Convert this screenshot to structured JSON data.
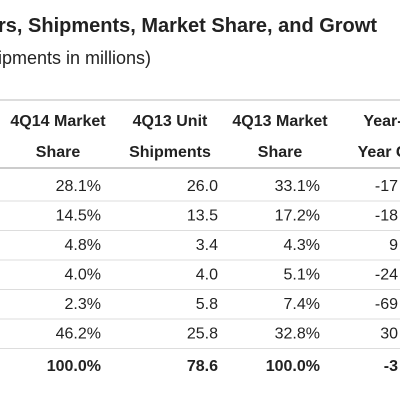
{
  "header": {
    "title": "rs, Shipments, Market Share, and Growt",
    "subtitle": "ipments in millions)"
  },
  "table": {
    "columns": [
      [
        "4Q14 Market",
        "Share"
      ],
      [
        "4Q13 Unit",
        "Shipments"
      ],
      [
        "4Q13 Market",
        "Share"
      ],
      [
        "Year-",
        "Year G"
      ]
    ],
    "rows": [
      [
        "28.1%",
        "26.0",
        "33.1%",
        "-17"
      ],
      [
        "14.5%",
        "13.5",
        "17.2%",
        "-18"
      ],
      [
        "4.8%",
        "3.4",
        "4.3%",
        "9"
      ],
      [
        "4.0%",
        "4.0",
        "5.1%",
        "-24"
      ],
      [
        "2.3%",
        "5.8",
        "7.4%",
        "-69"
      ],
      [
        "46.2%",
        "25.8",
        "32.8%",
        "30"
      ],
      [
        "100.0%",
        "78.6",
        "100.0%",
        "-3"
      ]
    ]
  }
}
